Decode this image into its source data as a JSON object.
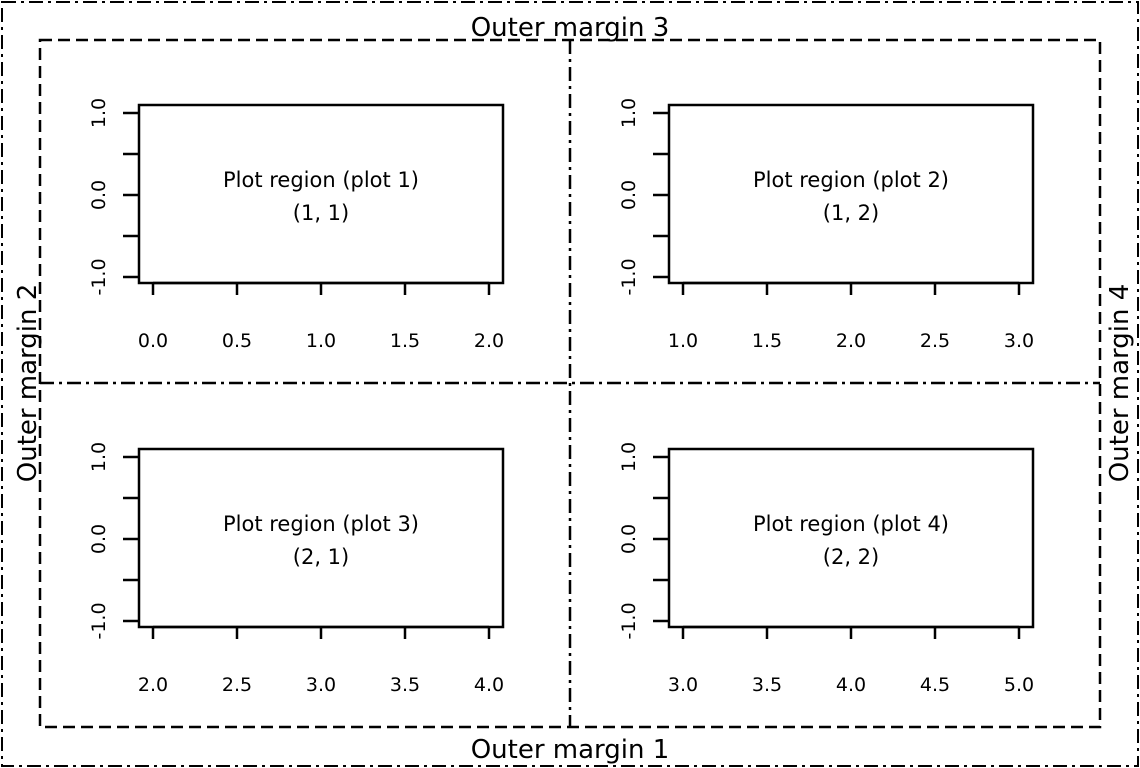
{
  "outer_margins": {
    "bottom": "Outer margin 1",
    "left": "Outer margin 2",
    "top": "Outer margin 3",
    "right": "Outer margin 4"
  },
  "panels": [
    {
      "title": "Plot region (plot 1)",
      "position": "(1, 1)",
      "x_ticks": [
        "0.0",
        "0.5",
        "1.0",
        "1.5",
        "2.0"
      ],
      "y_ticks": [
        "1.0",
        "0.0",
        "-1.0"
      ]
    },
    {
      "title": "Plot region (plot 2)",
      "position": "(1, 2)",
      "x_ticks": [
        "1.0",
        "1.5",
        "2.0",
        "2.5",
        "3.0"
      ],
      "y_ticks": [
        "1.0",
        "0.0",
        "-1.0"
      ]
    },
    {
      "title": "Plot region (plot 3)",
      "position": "(2, 1)",
      "x_ticks": [
        "2.0",
        "2.5",
        "3.0",
        "3.5",
        "4.0"
      ],
      "y_ticks": [
        "1.0",
        "0.0",
        "-1.0"
      ]
    },
    {
      "title": "Plot region (plot 4)",
      "position": "(2, 2)",
      "x_ticks": [
        "3.0",
        "3.5",
        "4.0",
        "4.5",
        "5.0"
      ],
      "y_ticks": [
        "1.0",
        "0.0",
        "-1.0"
      ]
    }
  ]
}
